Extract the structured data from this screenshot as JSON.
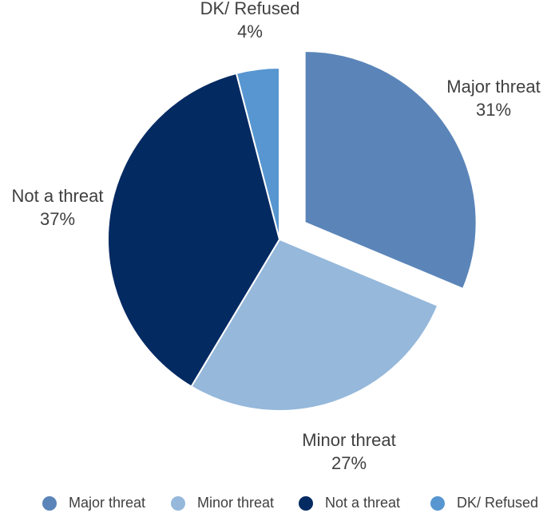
{
  "chart_data": {
    "type": "pie",
    "title": "",
    "slices": [
      {
        "label": "Major threat",
        "value": 31,
        "value_label": "31%",
        "color": "#5b85b9",
        "exploded": true
      },
      {
        "label": "Minor threat",
        "value": 27,
        "value_label": "27%",
        "color": "#95b8db",
        "exploded": false
      },
      {
        "label": "Not a threat",
        "value": 37,
        "value_label": "37%",
        "color": "#042a62",
        "exploded": false
      },
      {
        "label": "DK/ Refused",
        "value": 4,
        "value_label": "4%",
        "color": "#5796d0",
        "exploded": false
      }
    ],
    "legend": {
      "position": "bottom",
      "items": [
        "Major threat",
        "Minor threat",
        "Not a threat",
        "DK/ Refused"
      ]
    },
    "start_angle": "12 o'clock",
    "direction": "clockwise"
  }
}
